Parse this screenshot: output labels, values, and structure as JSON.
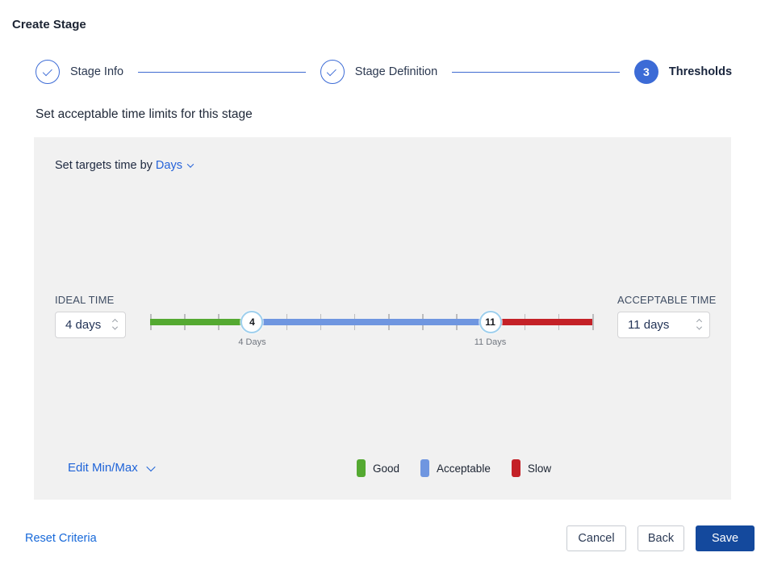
{
  "page": {
    "title": "Create Stage"
  },
  "stepper": {
    "steps": [
      {
        "label": "Stage Info",
        "state": "complete"
      },
      {
        "label": "Stage Definition",
        "state": "complete"
      },
      {
        "label": "Thresholds",
        "state": "active",
        "number": "3"
      }
    ]
  },
  "section": {
    "heading": "Set acceptable time limits for this stage"
  },
  "panel": {
    "target_time": {
      "prefix": "Set targets time by",
      "unit_value": "Days"
    },
    "ideal": {
      "label": "IDEAL TIME",
      "value": "4 days"
    },
    "acceptable": {
      "label": "ACCEPTABLE TIME",
      "value": "11 days"
    },
    "slider": {
      "min_day": 1,
      "max_day": 14,
      "tick_interval_days": 1,
      "ideal_day": 4,
      "acceptable_day": 11,
      "ideal_handle_text": "4",
      "acceptable_handle_text": "11",
      "ideal_marker_label": "4 Days",
      "acceptable_marker_label": "11 Days",
      "colors": {
        "good": "#54a931",
        "acceptable": "#6f96e0",
        "slow": "#c42127"
      }
    },
    "edit_minmax_label": "Edit Min/Max",
    "legend": [
      {
        "label": "Good",
        "color": "#54a931"
      },
      {
        "label": "Acceptable",
        "color": "#6f96e0"
      },
      {
        "label": "Slow",
        "color": "#c42127"
      }
    ]
  },
  "footer": {
    "reset_label": "Reset Criteria",
    "cancel_label": "Cancel",
    "back_label": "Back",
    "save_label": "Save"
  }
}
